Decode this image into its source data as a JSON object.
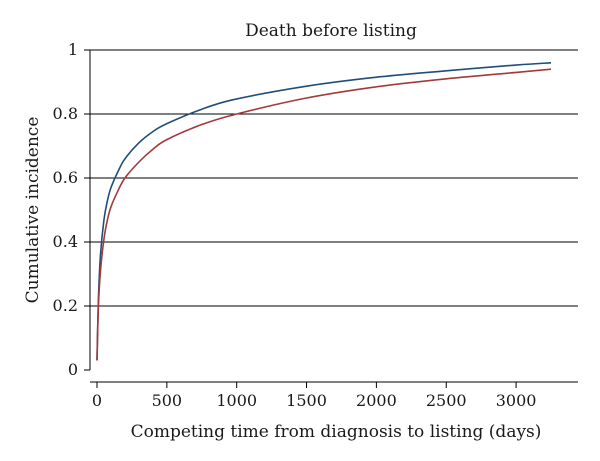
{
  "chart_data": {
    "type": "line",
    "title": "Death before listing",
    "xlabel": "Competing time from diagnosis to listing (days)",
    "ylabel": "Cumulative incidence",
    "xlim": [
      0,
      3300
    ],
    "ylim": [
      0,
      1
    ],
    "x_ticks": [
      "0",
      "500",
      "1000",
      "1500",
      "2000",
      "2500",
      "3000"
    ],
    "y_ticks": [
      "0",
      "0.2",
      "0.4",
      "0.6",
      "0.8",
      "1"
    ],
    "grid": "horizontal",
    "series": [
      {
        "color": "#1f4e79",
        "x": [
          0,
          10,
          25,
          50,
          75,
          100,
          150,
          200,
          300,
          400,
          500,
          750,
          1000,
          1500,
          2000,
          2500,
          3000,
          3250
        ],
        "y": [
          0.03,
          0.22,
          0.36,
          0.47,
          0.53,
          0.57,
          0.62,
          0.66,
          0.71,
          0.745,
          0.77,
          0.815,
          0.847,
          0.887,
          0.915,
          0.935,
          0.953,
          0.96
        ]
      },
      {
        "color": "#a33a3a",
        "x": [
          0,
          10,
          25,
          50,
          75,
          100,
          150,
          200,
          300,
          400,
          500,
          750,
          1000,
          1500,
          2000,
          2500,
          3000,
          3250
        ],
        "y": [
          0.03,
          0.2,
          0.31,
          0.41,
          0.47,
          0.51,
          0.56,
          0.6,
          0.65,
          0.69,
          0.72,
          0.767,
          0.8,
          0.85,
          0.885,
          0.91,
          0.93,
          0.94
        ]
      }
    ]
  }
}
